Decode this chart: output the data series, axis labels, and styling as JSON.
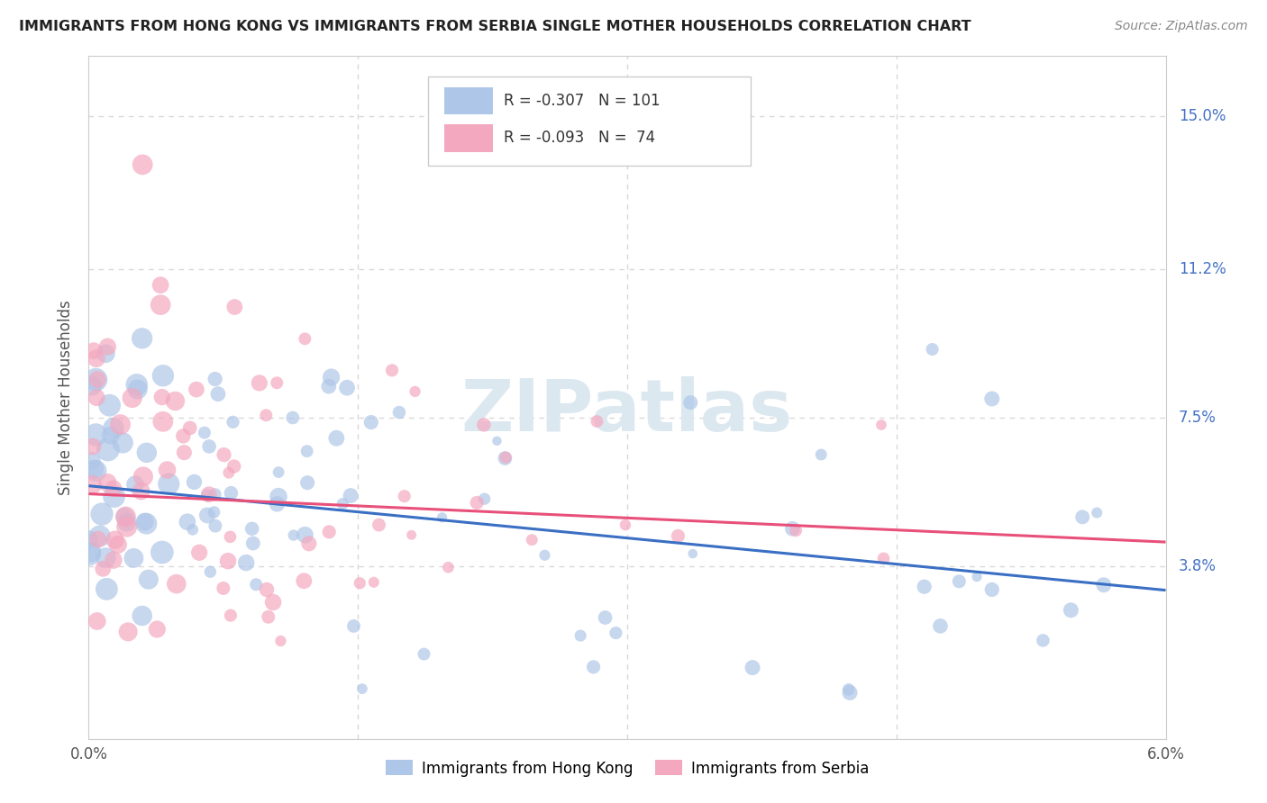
{
  "title": "IMMIGRANTS FROM HONG KONG VS IMMIGRANTS FROM SERBIA SINGLE MOTHER HOUSEHOLDS CORRELATION CHART",
  "source": "Source: ZipAtlas.com",
  "ylabel": "Single Mother Households",
  "ytick_labels": [
    "15.0%",
    "11.2%",
    "7.5%",
    "3.8%"
  ],
  "ytick_values": [
    0.15,
    0.112,
    0.075,
    0.038
  ],
  "xlim": [
    0.0,
    0.06
  ],
  "ylim": [
    -0.005,
    0.165
  ],
  "hk_R": -0.307,
  "hk_N": 101,
  "serbia_R": -0.093,
  "serbia_N": 74,
  "hk_color": "#aec6e8",
  "serbia_color": "#f4a8c0",
  "hk_line_color": "#3a6fc4",
  "serbia_line_color": "#e8507a",
  "watermark": "ZIPatlas",
  "watermark_color": "#dce8f0",
  "background_color": "#ffffff",
  "grid_color": "#d8d8d8",
  "hk_line_start_y": 0.058,
  "hk_line_end_y": 0.032,
  "serbia_line_start_y": 0.056,
  "serbia_line_end_y": 0.044
}
